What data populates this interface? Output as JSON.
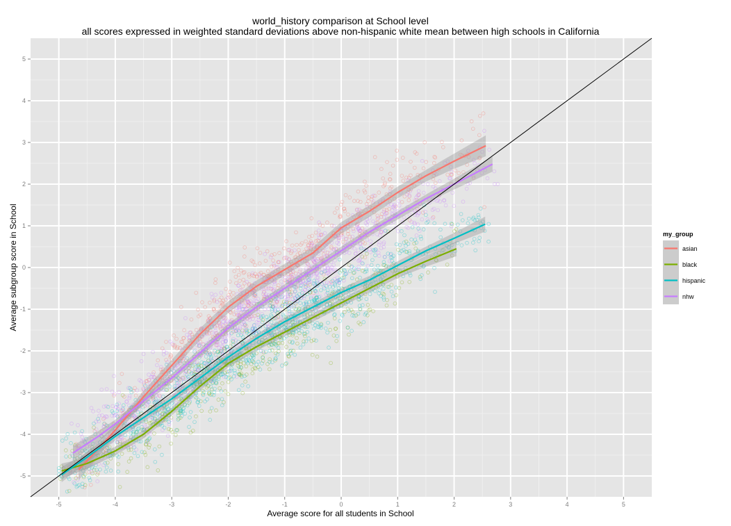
{
  "chart_data": {
    "type": "scatter",
    "title": "world_history comparison at School level",
    "subtitle": "all scores expressed in weighted standard deviations above non-hispanic white mean between high schools in California",
    "xlabel": "Average score for all students in School",
    "ylabel": "Average subgroup score in School",
    "xlim": [
      -5.5,
      5.5
    ],
    "ylim": [
      -5.5,
      5.5
    ],
    "x_ticks": [
      -5,
      -4,
      -3,
      -2,
      -1,
      0,
      1,
      2,
      3,
      4,
      5
    ],
    "y_ticks": [
      -5,
      -4,
      -3,
      -2,
      -1,
      0,
      1,
      2,
      3,
      4,
      5
    ],
    "grid": true,
    "reference_line": "y = x",
    "legend": {
      "title": "my_group",
      "placement": "right",
      "entries": [
        "asian",
        "black",
        "hispanic",
        "nhw"
      ]
    },
    "series": [
      {
        "name": "asian",
        "color": "#F8766D",
        "smooth_x": [
          -4.65,
          -4.3,
          -4.0,
          -3.5,
          -3.0,
          -2.5,
          -2.0,
          -1.5,
          -1.0,
          -0.5,
          0.0,
          0.5,
          1.0,
          1.5,
          2.0,
          2.56
        ],
        "smooth_y": [
          -4.85,
          -4.35,
          -3.9,
          -3.1,
          -2.35,
          -1.6,
          -0.95,
          -0.45,
          -0.05,
          0.35,
          0.95,
          1.35,
          1.8,
          2.2,
          2.55,
          2.92
        ],
        "band_width": 0.14
      },
      {
        "name": "black",
        "color": "#7CAE00",
        "smooth_x": [
          -4.95,
          -4.5,
          -4.0,
          -3.5,
          -3.0,
          -2.5,
          -2.0,
          -1.5,
          -1.0,
          -0.5,
          0.0,
          0.5,
          1.0,
          1.5,
          2.04
        ],
        "smooth_y": [
          -4.88,
          -4.7,
          -4.4,
          -4.0,
          -3.45,
          -2.85,
          -2.3,
          -1.9,
          -1.55,
          -1.2,
          -0.85,
          -0.5,
          -0.15,
          0.15,
          0.45
        ],
        "band_width": 0.1
      },
      {
        "name": "hispanic",
        "color": "#00BFC4",
        "smooth_x": [
          -4.95,
          -4.5,
          -4.0,
          -3.5,
          -3.0,
          -2.5,
          -2.0,
          -1.5,
          -1.0,
          -0.5,
          0.0,
          0.5,
          1.0,
          1.5,
          2.0,
          2.55
        ],
        "smooth_y": [
          -4.97,
          -4.55,
          -4.05,
          -3.6,
          -3.15,
          -2.65,
          -2.15,
          -1.7,
          -1.3,
          -0.95,
          -0.6,
          -0.3,
          0.05,
          0.4,
          0.7,
          1.04
        ],
        "band_width": 0.1
      },
      {
        "name": "nhw",
        "color": "#C77CFF",
        "smooth_x": [
          -4.75,
          -4.3,
          -4.0,
          -3.5,
          -3.0,
          -2.5,
          -2.0,
          -1.5,
          -1.0,
          -0.5,
          0.0,
          0.5,
          1.0,
          1.5,
          2.0,
          2.68
        ],
        "smooth_y": [
          -4.45,
          -4.05,
          -3.75,
          -3.2,
          -2.65,
          -2.05,
          -1.45,
          -0.95,
          -0.5,
          -0.05,
          0.4,
          0.85,
          1.25,
          1.65,
          2.0,
          2.48
        ],
        "band_width": 0.1
      }
    ],
    "scatter_note_points": [
      {
        "series": "asian",
        "approx_count": 700
      },
      {
        "series": "black",
        "approx_count": 500
      },
      {
        "series": "hispanic",
        "approx_count": 1100
      },
      {
        "series": "nhw",
        "approx_count": 1100
      }
    ]
  }
}
